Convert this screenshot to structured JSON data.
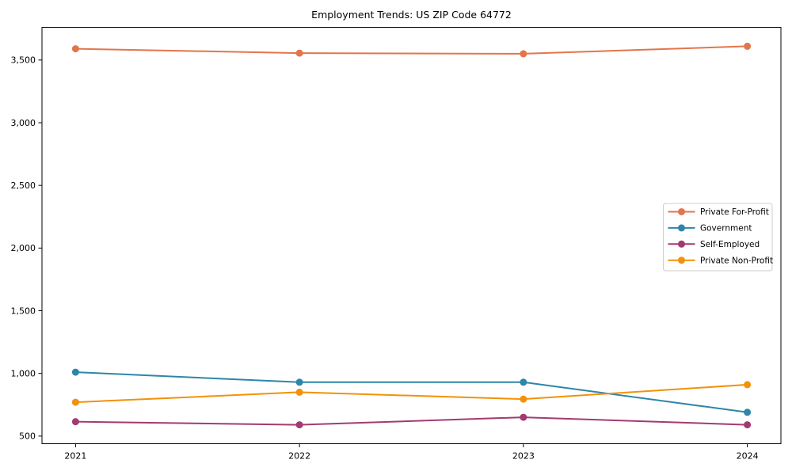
{
  "chart_data": {
    "type": "line",
    "title": "Employment Trends: US ZIP Code 64772",
    "x": [
      2021,
      2022,
      2023,
      2024
    ],
    "x_tick_labels": [
      "2021",
      "2022",
      "2023",
      "2024"
    ],
    "y_ticks": [
      500,
      1000,
      1500,
      2000,
      2500,
      3000,
      3500
    ],
    "y_tick_labels": [
      "500",
      "1,000",
      "1,500",
      "2,000",
      "2,500",
      "3,000",
      "3,500"
    ],
    "xlim": [
      2020.85,
      2024.15
    ],
    "ylim": [
      439,
      3761
    ],
    "grid": false,
    "legend_position": "center-right",
    "background_color": "#ffffff",
    "axis_color": "#000000",
    "series": [
      {
        "name": "Private For-Profit",
        "color": "#E2764B",
        "values": [
          3590,
          3555,
          3550,
          3610
        ]
      },
      {
        "name": "Government",
        "color": "#2E86A8",
        "values": [
          1010,
          930,
          930,
          690
        ]
      },
      {
        "name": "Self-Employed",
        "color": "#A23B72",
        "values": [
          615,
          590,
          650,
          590
        ]
      },
      {
        "name": "Private Non-Profit",
        "color": "#F39109",
        "values": [
          770,
          850,
          795,
          910
        ]
      }
    ]
  }
}
